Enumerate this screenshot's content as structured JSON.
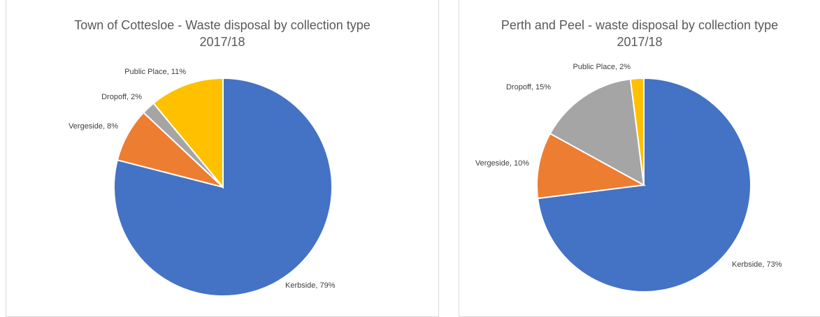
{
  "chart_data": [
    {
      "type": "pie",
      "title": "Town of Cottesloe - Waste disposal by collection type\n2017/18",
      "categories": [
        "Kerbside",
        "Vergeside",
        "Dropoff",
        "Public Place"
      ],
      "values": [
        79,
        8,
        2,
        11
      ],
      "labels": [
        "Kerbside, 79%",
        "Vergeside, 8%",
        "Dropoff, 2%",
        "Public Place, 11%"
      ],
      "colors": [
        "#4472C4",
        "#ED7D31",
        "#A5A5A5",
        "#FFC000"
      ]
    },
    {
      "type": "pie",
      "title": "Perth and Peel - waste disposal by collection type\n2017/18",
      "categories": [
        "Kerbside",
        "Vergeside",
        "Dropoff",
        "Public Place"
      ],
      "values": [
        73,
        10,
        15,
        2
      ],
      "labels": [
        "Kerbside, 73%",
        "Vergeside, 10%",
        "Dropoff, 15%",
        "Public Place, 2%"
      ],
      "colors": [
        "#4472C4",
        "#ED7D31",
        "#A5A5A5",
        "#FFC000"
      ]
    }
  ]
}
